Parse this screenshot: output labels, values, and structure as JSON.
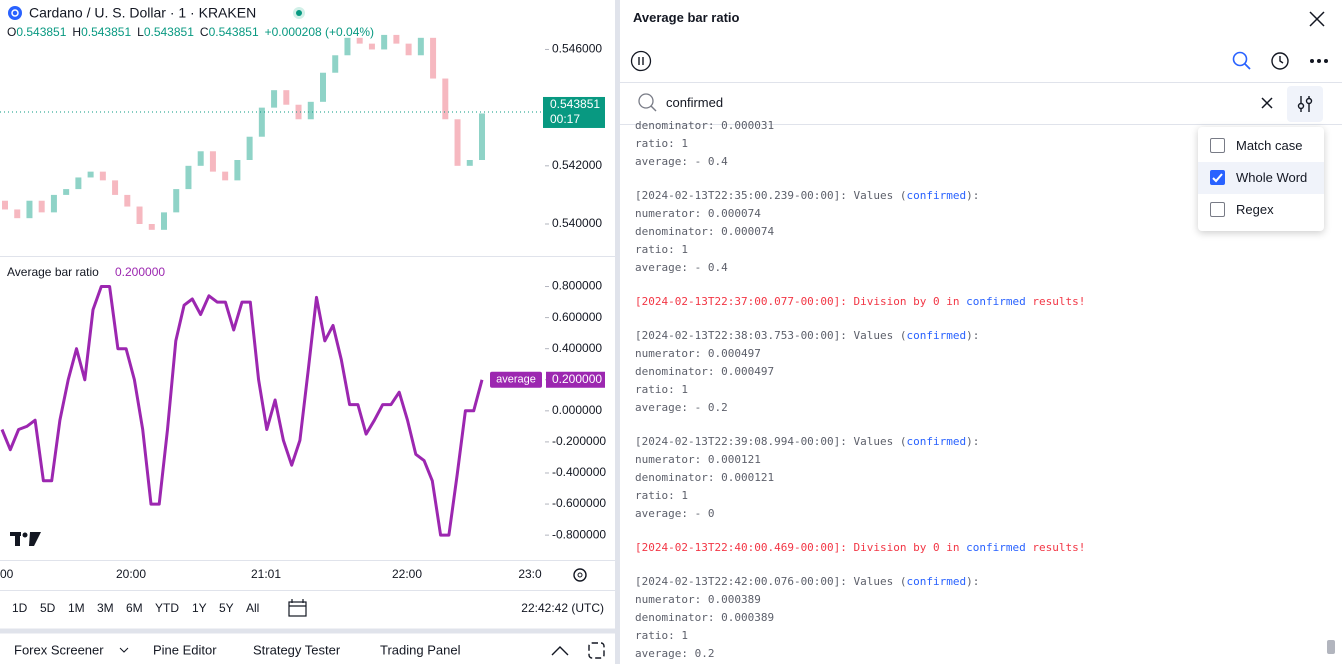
{
  "chart_panel": {
    "symbol": "Cardano / U. S. Dollar · 1 · KRAKEN",
    "ohlc": [
      {
        "label": "O",
        "value": "0.543851"
      },
      {
        "label": "H",
        "value": "0.543851"
      },
      {
        "label": "L",
        "value": "0.543851"
      },
      {
        "label": "C",
        "value": "0.543851"
      }
    ],
    "change": "+0.000208 (+0.04%)",
    "price_pane": {
      "type": "candlestick",
      "up_color": "#8fd3c7",
      "down_color": "#f6b8c0",
      "open": [
        0.5408,
        0.5405,
        0.5402,
        0.5408,
        0.5404,
        0.541,
        0.5412,
        0.5416,
        0.5418,
        0.5415,
        0.541,
        0.5406,
        0.54,
        0.5398,
        0.5404,
        0.5412,
        0.542,
        0.5425,
        0.5418,
        0.5415,
        0.5422,
        0.543,
        0.544,
        0.5446,
        0.5441,
        0.5436,
        0.5442,
        0.5452,
        0.5458,
        0.5464,
        0.5462,
        0.546,
        0.5465,
        0.5462,
        0.5458,
        0.5464,
        0.545,
        0.5436,
        0.542,
        0.5422
      ],
      "close": [
        0.5405,
        0.5402,
        0.5408,
        0.5404,
        0.541,
        0.5412,
        0.5416,
        0.5418,
        0.5415,
        0.541,
        0.5406,
        0.54,
        0.5398,
        0.5404,
        0.5412,
        0.542,
        0.5425,
        0.5418,
        0.5415,
        0.5422,
        0.543,
        0.544,
        0.5446,
        0.5441,
        0.5436,
        0.5442,
        0.5452,
        0.5458,
        0.5464,
        0.5462,
        0.546,
        0.5465,
        0.5462,
        0.5458,
        0.5464,
        0.545,
        0.5436,
        0.542,
        0.5422,
        0.5438
      ],
      "ylim": [
        0.5389,
        0.5477
      ],
      "yticks": [
        {
          "value": 0.546,
          "label": "0.546000"
        },
        {
          "value": 0.542,
          "label": "0.542000"
        },
        {
          "value": 0.54,
          "label": "0.540000"
        }
      ],
      "last_price": {
        "value": 0.543851,
        "label": "0.543851"
      },
      "countdown": "00:17"
    },
    "indicator_pane": {
      "type": "line",
      "title": "Average bar ratio",
      "current": "0.200000",
      "color": "#9c27b0",
      "series_name": "average",
      "values": [
        -0.12,
        -0.25,
        -0.12,
        -0.1,
        -0.06,
        -0.45,
        -0.45,
        -0.06,
        0.2,
        0.4,
        0.2,
        0.65,
        0.8,
        0.8,
        0.4,
        0.4,
        0.2,
        -0.12,
        -0.6,
        -0.6,
        -0.12,
        0.45,
        0.68,
        0.72,
        0.62,
        0.74,
        0.7,
        0.7,
        0.52,
        0.7,
        0.7,
        0.2,
        -0.12,
        0.07,
        -0.19,
        -0.35,
        -0.19,
        0.26,
        0.73,
        0.45,
        0.55,
        0.33,
        0.04,
        0.04,
        -0.15,
        -0.06,
        0.04,
        0.04,
        0.12,
        -0.06,
        -0.28,
        -0.32,
        -0.45,
        -0.8,
        -0.8,
        -0.41,
        0,
        0,
        0.2
      ],
      "last_value": {
        "value": 0.2,
        "label": "0.200000"
      },
      "ylim": [
        -0.96,
        0.99
      ],
      "yticks": [
        {
          "value": 0.8,
          "label": "0.800000"
        },
        {
          "value": 0.6,
          "label": "0.600000"
        },
        {
          "value": 0.4,
          "label": "0.400000"
        },
        {
          "value": 0.2,
          "label": "0.200000"
        },
        {
          "value": 0,
          "label": "0.000000"
        },
        {
          "value": -0.2,
          "label": "-0.200000"
        },
        {
          "value": -0.4,
          "label": "-0.400000"
        },
        {
          "value": -0.6,
          "label": "-0.600000"
        },
        {
          "value": -0.8,
          "label": "-0.800000"
        }
      ]
    },
    "time_axis": [
      "00",
      "20:00",
      "21:01",
      "22:00",
      "23:0"
    ],
    "ranges": [
      "1D",
      "5D",
      "1M",
      "3M",
      "6M",
      "YTD",
      "1Y",
      "5Y",
      "All"
    ],
    "clock": "22:42:42 (UTC)",
    "tabs": [
      "Forex Screener",
      "Pine Editor",
      "Strategy Tester",
      "Trading Panel"
    ]
  },
  "log_panel": {
    "title": "Average bar ratio",
    "search": "confirmed",
    "options": [
      {
        "label": "Match case",
        "checked": false
      },
      {
        "label": "Whole Word",
        "checked": true
      },
      {
        "label": "Regex",
        "checked": false
      }
    ],
    "entries": [
      {
        "kind": "info",
        "lines": [
          [
            "denominator: 0.000031"
          ],
          [
            "ratio: 1"
          ],
          [
            "average: - 0.4"
          ]
        ]
      },
      {
        "kind": "info",
        "lines": [
          [
            "[2024-02-13T22:35:00.239-00:00]: Values (",
            "confirmed",
            "):"
          ],
          [
            "numerator: 0.000074"
          ],
          [
            "denominator: 0.000074"
          ],
          [
            "ratio: 1"
          ],
          [
            "average: - 0.4"
          ]
        ]
      },
      {
        "kind": "error",
        "lines": [
          [
            "[2024-02-13T22:37:00.077-00:00]: Division by 0 in ",
            "confirmed",
            " results!"
          ]
        ]
      },
      {
        "kind": "info",
        "lines": [
          [
            "[2024-02-13T22:38:03.753-00:00]: Values (",
            "confirmed",
            "):"
          ],
          [
            "numerator: 0.000497"
          ],
          [
            "denominator: 0.000497"
          ],
          [
            "ratio: 1"
          ],
          [
            "average: - 0.2"
          ]
        ]
      },
      {
        "kind": "info",
        "lines": [
          [
            "[2024-02-13T22:39:08.994-00:00]: Values (",
            "confirmed",
            "):"
          ],
          [
            "numerator: 0.000121"
          ],
          [
            "denominator: 0.000121"
          ],
          [
            "ratio: 1"
          ],
          [
            "average: - 0"
          ]
        ]
      },
      {
        "kind": "error",
        "lines": [
          [
            "[2024-02-13T22:40:00.469-00:00]: Division by 0 in ",
            "confirmed",
            " results!"
          ]
        ]
      },
      {
        "kind": "info",
        "lines": [
          [
            "[2024-02-13T22:42:00.076-00:00]: Values (",
            "confirmed",
            "):"
          ],
          [
            "numerator: 0.000389"
          ],
          [
            "denominator: 0.000389"
          ],
          [
            "ratio: 1"
          ],
          [
            "average: 0.2"
          ]
        ]
      }
    ]
  }
}
